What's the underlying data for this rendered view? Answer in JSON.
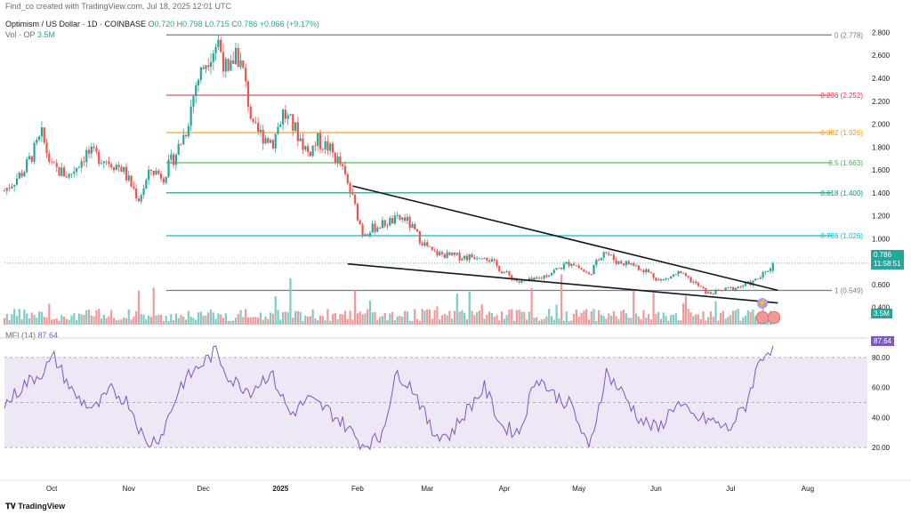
{
  "header": {
    "creator": "Find_co created with TradingView.com, Jul 18, 2025 12:01 UTC",
    "symbol": "Optimism / US Dollar · 1D · COINBASE",
    "o_label": "O",
    "o_value": "0.720",
    "h_label": "H",
    "h_value": "0.798",
    "l_label": "L",
    "l_value": "0.715",
    "c_label": "C",
    "c_value": "0.786",
    "change": "+0.066 (+9.17%)",
    "vol_label": "Vol · OP",
    "vol_value": "3.5M",
    "mfi_label": "MFI (14)",
    "mfi_value": "87.64"
  },
  "badges": {
    "price": "0.786",
    "countdown": "11:58:51",
    "volume": "3.5M",
    "mfi": "87.64"
  },
  "footer": {
    "logo": "TradingView"
  },
  "colors": {
    "up": "#26a69a",
    "down": "#ef5350",
    "mfi": "#7e57c2",
    "fib_0": "#787b86",
    "fib_236": "#f23645",
    "fib_382": "#ff9800",
    "fib_5": "#4caf50",
    "fib_618": "#089981",
    "fib_786": "#00bcd4",
    "fib_1": "#787b86"
  },
  "chart_data": [
    {
      "type": "candlestick",
      "title": "Optimism / US Dollar · 1D · COINBASE",
      "y_ticks": [
        "0.400",
        "0.600",
        "0.800",
        "1.000",
        "1.200",
        "1.400",
        "1.600",
        "1.800",
        "2.000",
        "2.200",
        "2.400",
        "2.600",
        "2.800"
      ],
      "ylim": [
        0.25,
        2.85
      ],
      "x_ticks": [
        "Oct",
        "Nov",
        "Dec",
        "2025",
        "Feb",
        "Mar",
        "Apr",
        "May",
        "Jun",
        "Jul",
        "Aug"
      ],
      "fib_levels": [
        {
          "label": "0 (2.778)",
          "value": 2.778
        },
        {
          "label": "0.236 (2.252)",
          "value": 2.252
        },
        {
          "label": "0.382 (1.926)",
          "value": 1.926
        },
        {
          "label": "0.5 (1.663)",
          "value": 1.663
        },
        {
          "label": "0.618 (1.400)",
          "value": 1.4
        },
        {
          "label": "0.786 (1.026)",
          "value": 1.026
        },
        {
          "label": "1 (0.549)",
          "value": 0.549
        }
      ],
      "trendlines": [
        {
          "name": "upper",
          "from": [
            "2025-01-30",
            1.46
          ],
          "to": [
            "2025-07-20",
            0.55
          ]
        },
        {
          "name": "lower",
          "from": [
            "2025-01-28",
            0.78
          ],
          "to": [
            "2025-07-20",
            0.44
          ]
        }
      ],
      "close_path": [
        [
          "2024-09-12",
          1.42
        ],
        [
          "2024-09-20",
          1.6
        ],
        [
          "2024-09-27",
          1.9
        ],
        [
          "2024-10-01",
          1.62
        ],
        [
          "2024-10-08",
          1.55
        ],
        [
          "2024-10-15",
          1.75
        ],
        [
          "2024-10-22",
          1.7
        ],
        [
          "2024-10-29",
          1.62
        ],
        [
          "2024-11-05",
          1.35
        ],
        [
          "2024-11-10",
          1.6
        ],
        [
          "2024-11-15",
          1.55
        ],
        [
          "2024-11-20",
          1.75
        ],
        [
          "2024-11-24",
          1.95
        ],
        [
          "2024-11-28",
          2.35
        ],
        [
          "2024-12-03",
          2.6
        ],
        [
          "2024-12-07",
          2.72
        ],
        [
          "2024-12-11",
          2.4
        ],
        [
          "2024-12-14",
          2.65
        ],
        [
          "2024-12-17",
          2.45
        ],
        [
          "2024-12-21",
          1.95
        ],
        [
          "2024-12-25",
          1.9
        ],
        [
          "2024-12-29",
          1.85
        ],
        [
          "2025-01-02",
          2.1
        ],
        [
          "2025-01-07",
          1.95
        ],
        [
          "2025-01-12",
          1.75
        ],
        [
          "2025-01-16",
          1.85
        ],
        [
          "2025-01-20",
          1.8
        ],
        [
          "2025-01-25",
          1.65
        ],
        [
          "2025-01-30",
          1.35
        ],
        [
          "2025-02-03",
          1.05
        ],
        [
          "2025-02-08",
          1.1
        ],
        [
          "2025-02-14",
          1.15
        ],
        [
          "2025-02-20",
          1.18
        ],
        [
          "2025-02-26",
          1.0
        ],
        [
          "2025-03-03",
          0.88
        ],
        [
          "2025-03-10",
          0.85
        ],
        [
          "2025-03-17",
          0.84
        ],
        [
          "2025-03-24",
          0.86
        ],
        [
          "2025-03-31",
          0.72
        ],
        [
          "2025-04-07",
          0.62
        ],
        [
          "2025-04-14",
          0.64
        ],
        [
          "2025-04-21",
          0.72
        ],
        [
          "2025-04-28",
          0.8
        ],
        [
          "2025-05-05",
          0.68
        ],
        [
          "2025-05-11",
          0.9
        ],
        [
          "2025-05-16",
          0.8
        ],
        [
          "2025-05-22",
          0.78
        ],
        [
          "2025-05-28",
          0.72
        ],
        [
          "2025-06-03",
          0.63
        ],
        [
          "2025-06-10",
          0.7
        ],
        [
          "2025-06-16",
          0.62
        ],
        [
          "2025-06-22",
          0.52
        ],
        [
          "2025-06-28",
          0.55
        ],
        [
          "2025-07-04",
          0.58
        ],
        [
          "2025-07-10",
          0.62
        ],
        [
          "2025-07-15",
          0.7
        ],
        [
          "2025-07-18",
          0.786
        ]
      ]
    },
    {
      "type": "bar",
      "title": "Vol · OP",
      "last_value": "3.5M"
    },
    {
      "type": "line",
      "title": "MFI (14)",
      "y_ticks": [
        "20.00",
        "40.00",
        "60.00",
        "80.00"
      ],
      "ylim": [
        10,
        90
      ],
      "bands": [
        20,
        80
      ],
      "x": [
        "2024-09-12",
        "2024-09-20",
        "2024-09-27",
        "2024-10-02",
        "2024-10-10",
        "2024-10-18",
        "2024-10-25",
        "2024-11-01",
        "2024-11-08",
        "2024-11-14",
        "2024-11-22",
        "2024-11-28",
        "2024-12-06",
        "2024-12-12",
        "2024-12-20",
        "2024-12-28",
        "2025-01-05",
        "2025-01-12",
        "2025-01-20",
        "2025-01-27",
        "2025-02-03",
        "2025-02-10",
        "2025-02-17",
        "2025-02-24",
        "2025-03-03",
        "2025-03-10",
        "2025-03-17",
        "2025-03-24",
        "2025-03-31",
        "2025-04-07",
        "2025-04-14",
        "2025-04-21",
        "2025-04-28",
        "2025-05-05",
        "2025-05-12",
        "2025-05-19",
        "2025-05-26",
        "2025-06-02",
        "2025-06-09",
        "2025-06-16",
        "2025-06-23",
        "2025-06-30",
        "2025-07-07",
        "2025-07-13",
        "2025-07-18"
      ],
      "values": [
        48,
        62,
        70,
        80,
        55,
        45,
        58,
        50,
        22,
        28,
        62,
        72,
        84,
        65,
        58,
        70,
        42,
        52,
        45,
        35,
        22,
        26,
        70,
        58,
        30,
        28,
        45,
        60,
        34,
        30,
        68,
        55,
        48,
        18,
        70,
        55,
        38,
        32,
        50,
        40,
        38,
        32,
        48,
        80,
        87.64
      ]
    }
  ]
}
